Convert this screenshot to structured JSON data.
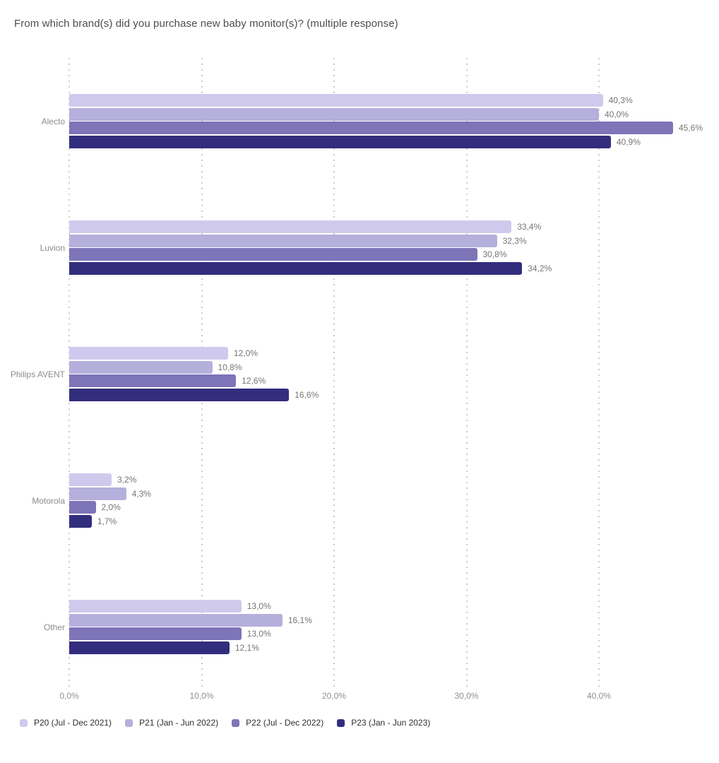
{
  "chart_data": {
    "type": "bar",
    "orientation": "horizontal",
    "title": "From which brand(s) did you purchase new baby monitor(s)? (multiple response)",
    "categories": [
      "Alecto",
      "Luvion",
      "Philips AVENT",
      "Motorola",
      "Other"
    ],
    "series": [
      {
        "name": "P20 (Jul - Dec 2021)",
        "color": "#cfcaed",
        "values": [
          40.3,
          33.4,
          12.0,
          3.2,
          13.0
        ]
      },
      {
        "name": "P21 (Jan - Jun 2022)",
        "color": "#b5b0db",
        "values": [
          40.0,
          32.3,
          10.8,
          4.3,
          16.1
        ]
      },
      {
        "name": "P22 (Jul - Dec 2022)",
        "color": "#7e74b8",
        "values": [
          45.6,
          30.8,
          12.6,
          2.0,
          13.0
        ]
      },
      {
        "name": "P23 (Jan - Jun 2023)",
        "color": "#332d7e",
        "values": [
          40.9,
          34.2,
          16.6,
          1.7,
          12.1
        ]
      }
    ],
    "value_label_format": "one-decimal-percent-comma",
    "decimal_separator": ",",
    "show_value_labels": true,
    "x_ticks": [
      {
        "value": 0,
        "label": "0,0%"
      },
      {
        "value": 10,
        "label": "10,0%"
      },
      {
        "value": 20,
        "label": "20,0%"
      },
      {
        "value": 30,
        "label": "30,0%"
      },
      {
        "value": 40,
        "label": "40,0%"
      }
    ],
    "xlim": [
      0,
      47.7
    ],
    "grid": "dotted-vertical",
    "legend_position": "bottom-left"
  }
}
